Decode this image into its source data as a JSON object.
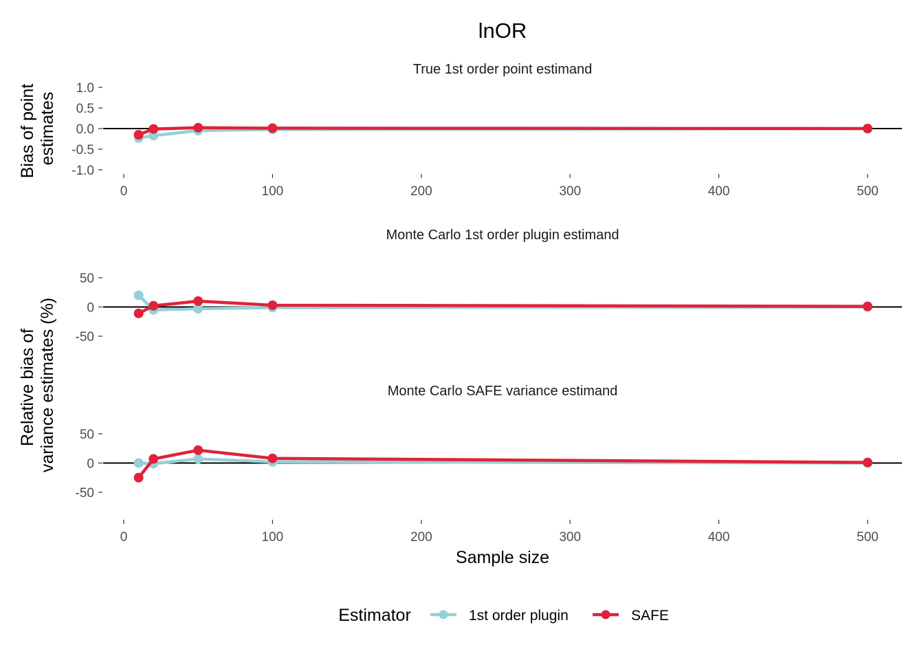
{
  "chart_data": {
    "type": "line",
    "title": "lnOR",
    "xlabel": "Sample size",
    "x_ticks": [
      0,
      100,
      200,
      300,
      400,
      500
    ],
    "xlim": [
      -8,
      525
    ],
    "ylabel_top": [
      "Bias of point",
      "estimates"
    ],
    "ylabel_bottom": [
      "Relative bias of",
      "variance estimates (%)"
    ],
    "legend": {
      "title": "Estimator",
      "position": "bottom",
      "items": [
        {
          "name": "1st order plugin",
          "color": "#96d0d5"
        },
        {
          "name": "SAFE",
          "color": "#e0223b"
        }
      ]
    },
    "panels": [
      {
        "subtitle": "True 1st order point estimand",
        "ylim": [
          -1.0,
          1.0
        ],
        "y_ticks": [
          "1.0",
          "0.5",
          "0.0",
          "-0.5",
          "-1.0"
        ],
        "y_tick_values": [
          1.0,
          0.5,
          0.0,
          -0.5,
          -1.0
        ],
        "reference_line": 0,
        "show_x_axis": true,
        "series": [
          {
            "name": "1st order plugin",
            "x": [
              10,
              20,
              50,
              100,
              500
            ],
            "y": [
              -0.23,
              -0.17,
              -0.05,
              -0.02,
              0.0
            ]
          },
          {
            "name": "SAFE",
            "x": [
              10,
              20,
              50,
              100,
              500
            ],
            "y": [
              -0.15,
              -0.01,
              0.02,
              0.01,
              0.0
            ]
          }
        ]
      },
      {
        "subtitle": "Monte Carlo 1st order plugin estimand",
        "ylim": [
          -50,
          50
        ],
        "y_ticks": [
          "50",
          "0",
          "-50"
        ],
        "y_tick_values": [
          50,
          0,
          -50
        ],
        "reference_line": 0,
        "show_x_axis": false,
        "series": [
          {
            "name": "1st order plugin",
            "x": [
              10,
              20,
              50,
              100,
              500
            ],
            "y": [
              20,
              -5,
              -3,
              -1,
              0
            ]
          },
          {
            "name": "SAFE",
            "x": [
              10,
              20,
              50,
              100,
              500
            ],
            "y": [
              -11,
              2,
              10,
              3,
              1
            ]
          }
        ]
      },
      {
        "subtitle": "Monte Carlo SAFE variance estimand",
        "ylim": [
          -50,
          50
        ],
        "y_ticks": [
          "50",
          "0",
          "-50"
        ],
        "y_tick_values": [
          50,
          0,
          -50
        ],
        "reference_line": 0,
        "show_x_axis": true,
        "series": [
          {
            "name": "1st order plugin",
            "x": [
              10,
              20,
              50,
              100,
              500
            ],
            "y": [
              0,
              -1,
              7,
              2,
              0
            ]
          },
          {
            "name": "SAFE",
            "x": [
              10,
              20,
              50,
              100,
              500
            ],
            "y": [
              -25,
              7,
              22,
              8,
              1
            ]
          }
        ]
      }
    ]
  }
}
